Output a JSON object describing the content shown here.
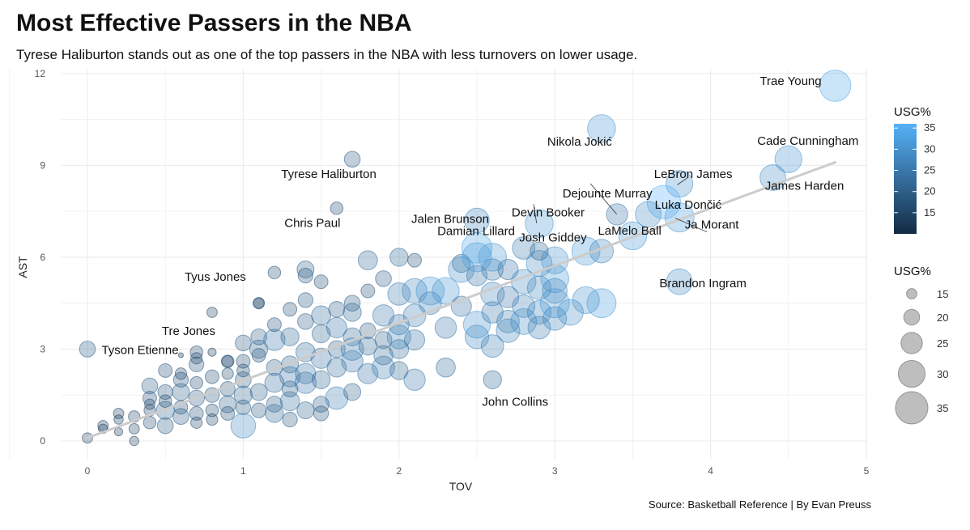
{
  "header": {
    "title": "Most Effective Passers in the NBA",
    "subtitle": "Tyrese Haliburton stands out as one of the top passers in the NBA with less turnovers on lower usage."
  },
  "footer": {
    "caption": "Source: Basketball Reference | By Evan Preuss"
  },
  "colors": {
    "low": "#132B43",
    "high": "#56B1F7",
    "trend": "#cccccc",
    "grid": "#ebebeb"
  },
  "chart_data": {
    "type": "scatter",
    "xlabel": "TOV",
    "ylabel": "AST",
    "xlim": [
      0,
      5
    ],
    "ylim": [
      0,
      12
    ],
    "x_ticks": [
      0,
      1,
      2,
      3,
      4,
      5
    ],
    "y_ticks": [
      0,
      3,
      6,
      9,
      12
    ],
    "grid": true,
    "trend_line": {
      "x": [
        0.0,
        4.8
      ],
      "y": [
        0.1,
        9.1
      ]
    },
    "legends": [
      {
        "title": "USG%",
        "kind": "color",
        "ticks": [
          15,
          20,
          25,
          30,
          35
        ],
        "range": [
          10,
          36
        ]
      },
      {
        "title": "USG%",
        "kind": "size",
        "ticks": [
          15,
          20,
          25,
          30,
          35
        ]
      }
    ],
    "labeled_players": [
      {
        "name": "Trae Young",
        "tov": 4.8,
        "ast": 11.6,
        "usg": 34
      },
      {
        "name": "Nikola Jokić",
        "tov": 3.3,
        "ast": 10.2,
        "usg": 31
      },
      {
        "name": "Cade Cunningham",
        "tov": 4.5,
        "ast": 9.2,
        "usg": 30
      },
      {
        "name": "Tyrese Haliburton",
        "tov": 1.7,
        "ast": 9.2,
        "usg": 20
      },
      {
        "name": "LeBron James",
        "tov": 3.8,
        "ast": 8.4,
        "usg": 30
      },
      {
        "name": "Dejounte Murray",
        "tov": 3.4,
        "ast": 7.4,
        "usg": 25
      },
      {
        "name": "Luka Dončić",
        "tov": 3.7,
        "ast": 7.8,
        "usg": 36
      },
      {
        "name": "James Harden",
        "tov": 4.4,
        "ast": 8.6,
        "usg": 29
      },
      {
        "name": "Jalen Brunson",
        "tov": 2.5,
        "ast": 7.2,
        "usg": 28
      },
      {
        "name": "Devin Booker",
        "tov": 2.9,
        "ast": 7.1,
        "usg": 31
      },
      {
        "name": "Chris Paul",
        "tov": 1.6,
        "ast": 7.6,
        "usg": 17
      },
      {
        "name": "Damian Lillard",
        "tov": 2.5,
        "ast": 6.3,
        "usg": 33
      },
      {
        "name": "Ja Morant",
        "tov": 3.8,
        "ast": 7.3,
        "usg": 32
      },
      {
        "name": "LaMelo Ball",
        "tov": 3.6,
        "ast": 7.4,
        "usg": 29
      },
      {
        "name": "Josh Giddey",
        "tov": 2.9,
        "ast": 6.2,
        "usg": 22
      },
      {
        "name": "Tyus Jones",
        "tov": 1.2,
        "ast": 5.5,
        "usg": 17
      },
      {
        "name": "Brandon Ingram",
        "tov": 3.8,
        "ast": 5.2,
        "usg": 29
      },
      {
        "name": "Tre Jones",
        "tov": 0.8,
        "ast": 4.2,
        "usg": 15
      },
      {
        "name": "Tyson Etienne",
        "tov": 0.0,
        "ast": 3.0,
        "usg": 20
      },
      {
        "name": "John Collins",
        "tov": 2.6,
        "ast": 2.0,
        "usg": 22
      }
    ],
    "points": [
      [
        0.0,
        0.1,
        15
      ],
      [
        0.1,
        0.5,
        15
      ],
      [
        0.1,
        0.4,
        14
      ],
      [
        0.2,
        0.9,
        15
      ],
      [
        0.2,
        0.7,
        14
      ],
      [
        0.2,
        0.3,
        13
      ],
      [
        0.3,
        0.0,
        14
      ],
      [
        0.3,
        0.4,
        15
      ],
      [
        0.3,
        0.8,
        16
      ],
      [
        0.4,
        1.8,
        20
      ],
      [
        0.4,
        1.4,
        18
      ],
      [
        0.4,
        1.0,
        16
      ],
      [
        0.4,
        0.6,
        17
      ],
      [
        0.4,
        1.2,
        15
      ],
      [
        0.5,
        1.6,
        19
      ],
      [
        0.5,
        2.3,
        18
      ],
      [
        0.5,
        1.0,
        22
      ],
      [
        0.5,
        0.5,
        20
      ],
      [
        0.5,
        1.3,
        17
      ],
      [
        0.6,
        2.0,
        19
      ],
      [
        0.6,
        1.6,
        21
      ],
      [
        0.6,
        1.1,
        18
      ],
      [
        0.6,
        0.8,
        20
      ],
      [
        0.6,
        2.2,
        16
      ],
      [
        0.7,
        1.9,
        17
      ],
      [
        0.7,
        1.4,
        20
      ],
      [
        0.7,
        2.5,
        19
      ],
      [
        0.7,
        0.9,
        18
      ],
      [
        0.7,
        0.6,
        16
      ],
      [
        0.7,
        2.9,
        17
      ],
      [
        0.7,
        2.7,
        16
      ],
      [
        0.8,
        1.5,
        19
      ],
      [
        0.8,
        1.0,
        17
      ],
      [
        0.8,
        2.1,
        18
      ],
      [
        0.8,
        0.7,
        16
      ],
      [
        0.9,
        2.6,
        17
      ],
      [
        0.9,
        1.7,
        19
      ],
      [
        0.9,
        1.2,
        21
      ],
      [
        0.9,
        2.2,
        16
      ],
      [
        0.9,
        0.9,
        18
      ],
      [
        1.0,
        2.0,
        20
      ],
      [
        1.0,
        1.5,
        22
      ],
      [
        1.0,
        1.1,
        19
      ],
      [
        1.0,
        2.6,
        18
      ],
      [
        1.0,
        3.2,
        20
      ],
      [
        1.0,
        0.5,
        28
      ],
      [
        1.0,
        2.3,
        17
      ],
      [
        1.1,
        3.4,
        20
      ],
      [
        1.1,
        2.8,
        18
      ],
      [
        1.1,
        1.6,
        21
      ],
      [
        1.1,
        1.0,
        19
      ],
      [
        1.1,
        3.0,
        22
      ],
      [
        1.1,
        4.5,
        16
      ],
      [
        1.2,
        2.4,
        20
      ],
      [
        1.2,
        1.9,
        23
      ],
      [
        1.2,
        1.2,
        20
      ],
      [
        1.2,
        3.3,
        25
      ],
      [
        1.2,
        0.9,
        22
      ],
      [
        1.2,
        3.8,
        18
      ],
      [
        1.3,
        2.5,
        21
      ],
      [
        1.3,
        1.7,
        20
      ],
      [
        1.3,
        0.7,
        19
      ],
      [
        1.3,
        4.3,
        18
      ],
      [
        1.3,
        3.4,
        22
      ],
      [
        1.3,
        2.1,
        24
      ],
      [
        1.3,
        1.3,
        23
      ],
      [
        1.4,
        3.9,
        20
      ],
      [
        1.4,
        2.9,
        23
      ],
      [
        1.4,
        1.9,
        25
      ],
      [
        1.4,
        1.0,
        21
      ],
      [
        1.4,
        4.6,
        19
      ],
      [
        1.4,
        5.6,
        21
      ],
      [
        1.4,
        5.4,
        19
      ],
      [
        1.4,
        2.2,
        24
      ],
      [
        1.5,
        3.5,
        22
      ],
      [
        1.5,
        2.7,
        24
      ],
      [
        1.5,
        2.0,
        22
      ],
      [
        1.5,
        1.2,
        20
      ],
      [
        1.5,
        4.1,
        23
      ],
      [
        1.5,
        0.9,
        19
      ],
      [
        1.5,
        5.2,
        18
      ],
      [
        1.6,
        3.0,
        21
      ],
      [
        1.6,
        2.4,
        23
      ],
      [
        1.6,
        1.4,
        26
      ],
      [
        1.6,
        4.3,
        20
      ],
      [
        1.6,
        3.7,
        24
      ],
      [
        1.7,
        2.6,
        25
      ],
      [
        1.7,
        3.4,
        22
      ],
      [
        1.7,
        1.6,
        21
      ],
      [
        1.7,
        4.5,
        20
      ],
      [
        1.7,
        4.2,
        22
      ],
      [
        1.7,
        3.0,
        26
      ],
      [
        1.8,
        3.1,
        22
      ],
      [
        1.8,
        2.2,
        24
      ],
      [
        1.8,
        3.6,
        20
      ],
      [
        1.8,
        4.9,
        18
      ],
      [
        1.8,
        5.9,
        23
      ],
      [
        1.9,
        2.4,
        26
      ],
      [
        1.9,
        3.3,
        21
      ],
      [
        1.9,
        4.1,
        25
      ],
      [
        1.9,
        5.3,
        20
      ],
      [
        1.9,
        2.8,
        23
      ],
      [
        2.0,
        3.0,
        23
      ],
      [
        2.0,
        2.3,
        22
      ],
      [
        2.0,
        3.8,
        24
      ],
      [
        2.0,
        4.8,
        26
      ],
      [
        2.0,
        6.0,
        22
      ],
      [
        2.0,
        3.4,
        27
      ],
      [
        2.1,
        2.0,
        25
      ],
      [
        2.1,
        4.1,
        26
      ],
      [
        2.1,
        4.9,
        28
      ],
      [
        2.1,
        5.9,
        18
      ],
      [
        2.1,
        3.3,
        24
      ],
      [
        2.2,
        4.5,
        26
      ],
      [
        2.2,
        4.9,
        31
      ],
      [
        2.3,
        3.7,
        25
      ],
      [
        2.3,
        4.9,
        30
      ],
      [
        2.3,
        2.4,
        23
      ],
      [
        2.4,
        4.4,
        24
      ],
      [
        2.4,
        5.8,
        22
      ],
      [
        2.4,
        5.6,
        29
      ],
      [
        2.5,
        3.4,
        27
      ],
      [
        2.5,
        3.8,
        30
      ],
      [
        2.5,
        5.4,
        24
      ],
      [
        2.5,
        6.0,
        32
      ],
      [
        2.6,
        4.2,
        25
      ],
      [
        2.6,
        3.1,
        26
      ],
      [
        2.6,
        5.6,
        25
      ],
      [
        2.6,
        4.8,
        27
      ],
      [
        2.6,
        6.0,
        31
      ],
      [
        2.7,
        3.9,
        26
      ],
      [
        2.7,
        4.7,
        25
      ],
      [
        2.7,
        5.6,
        24
      ],
      [
        2.7,
        3.6,
        27
      ],
      [
        2.8,
        4.4,
        26
      ],
      [
        2.8,
        5.2,
        28
      ],
      [
        2.8,
        6.3,
        26
      ],
      [
        2.8,
        3.9,
        29
      ],
      [
        2.9,
        5.0,
        27
      ],
      [
        2.9,
        5.8,
        29
      ],
      [
        2.9,
        4.2,
        27
      ],
      [
        2.9,
        3.7,
        26
      ],
      [
        3.0,
        5.3,
        31
      ],
      [
        3.0,
        4.5,
        32
      ],
      [
        3.0,
        4.0,
        27
      ],
      [
        3.0,
        5.9,
        30
      ],
      [
        3.0,
        4.9,
        28
      ],
      [
        3.1,
        4.2,
        29
      ],
      [
        3.2,
        6.2,
        31
      ],
      [
        3.2,
        4.6,
        30
      ],
      [
        3.3,
        6.2,
        27
      ],
      [
        3.3,
        4.5,
        32
      ],
      [
        3.5,
        6.7,
        31
      ],
      [
        0.6,
        2.8,
        10
      ],
      [
        0.8,
        2.9,
        13
      ],
      [
        0.9,
        2.6,
        16
      ],
      [
        1.1,
        4.5,
        15
      ]
    ]
  }
}
